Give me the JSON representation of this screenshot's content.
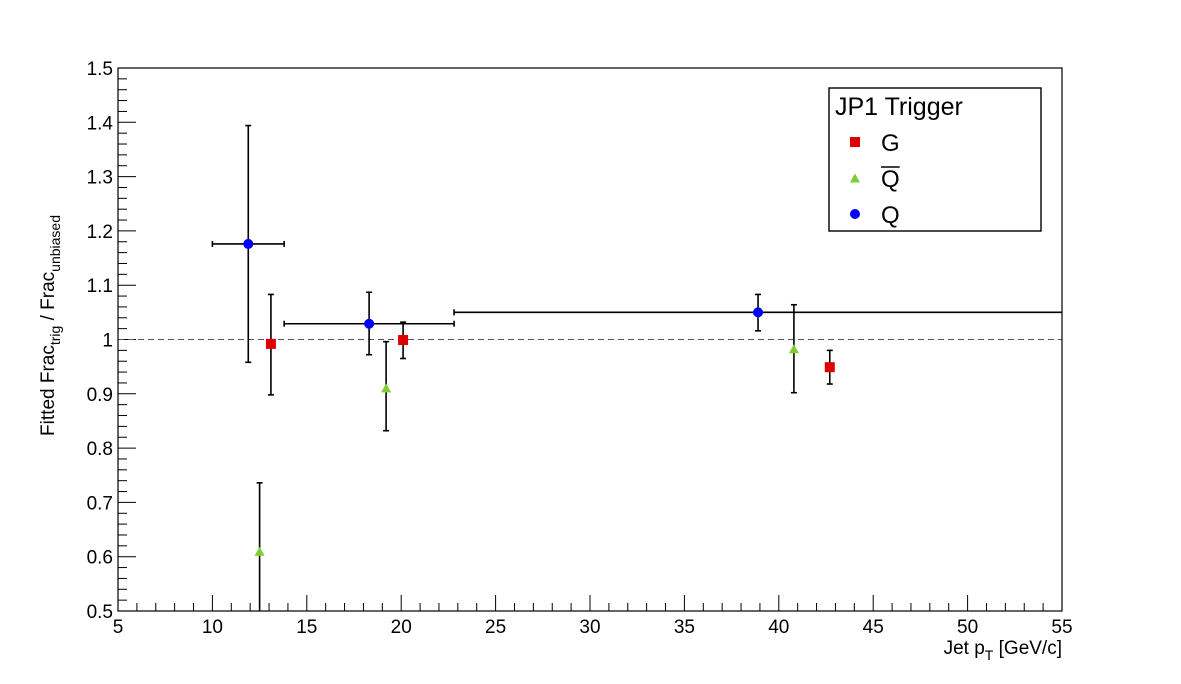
{
  "chart_data": {
    "type": "scatter",
    "title": "",
    "xlabel": {
      "main": "Jet p",
      "sub": "T",
      "tail": " [GeV/c]"
    },
    "ylabel": {
      "part1": "Fitted Frac",
      "sub1": "trig",
      "part2": " / Frac",
      "sub2": "unbiased"
    },
    "xlim": [
      5,
      55
    ],
    "ylim": [
      0.5,
      1.5
    ],
    "x_ticks": [
      "5",
      "10",
      "15",
      "20",
      "25",
      "30",
      "35",
      "40",
      "45",
      "50",
      "55"
    ],
    "y_ticks": [
      "0.5",
      "0.6",
      "0.7",
      "0.8",
      "0.9",
      "1",
      "1.1",
      "1.2",
      "1.3",
      "1.4",
      "1.5"
    ],
    "reference_line": {
      "y": 1.0,
      "style": "dashed"
    },
    "grid": false,
    "legend": {
      "title": "JP1 Trigger",
      "position": "top-right",
      "entries": [
        {
          "label": "G",
          "overline": false,
          "series": "G"
        },
        {
          "label": "Q",
          "overline": true,
          "series": "Qbar"
        },
        {
          "label": "Q",
          "overline": false,
          "series": "Q"
        }
      ]
    },
    "series": [
      {
        "id": "Q",
        "marker": "circle",
        "color": "#0000ff",
        "points": [
          {
            "x": 11.9,
            "y": 1.176,
            "xlo": 10.0,
            "xhi": 13.8,
            "ylo": 0.958,
            "yhi": 1.394
          },
          {
            "x": 18.3,
            "y": 1.029,
            "xlo": 13.8,
            "xhi": 22.8,
            "ylo": 0.972,
            "yhi": 1.087
          },
          {
            "x": 38.9,
            "y": 1.05,
            "xlo": 22.8,
            "xhi": 55.0,
            "ylo": 1.016,
            "yhi": 1.083
          }
        ]
      },
      {
        "id": "G",
        "marker": "square",
        "color": "#dd0000",
        "points": [
          {
            "x": 13.1,
            "y": 0.992,
            "ylo": 0.898,
            "yhi": 1.083
          },
          {
            "x": 20.1,
            "y": 0.999,
            "ylo": 0.965,
            "yhi": 1.032
          },
          {
            "x": 42.7,
            "y": 0.949,
            "ylo": 0.918,
            "yhi": 0.98
          }
        ]
      },
      {
        "id": "Qbar",
        "marker": "triangle",
        "color": "#80cc33",
        "points": [
          {
            "x": 12.5,
            "y": 0.61,
            "ylo": 0.5,
            "yhi": 0.736
          },
          {
            "x": 19.2,
            "y": 0.911,
            "ylo": 0.832,
            "yhi": 0.996
          },
          {
            "x": 40.8,
            "y": 0.983,
            "ylo": 0.902,
            "yhi": 1.064
          }
        ]
      }
    ]
  }
}
